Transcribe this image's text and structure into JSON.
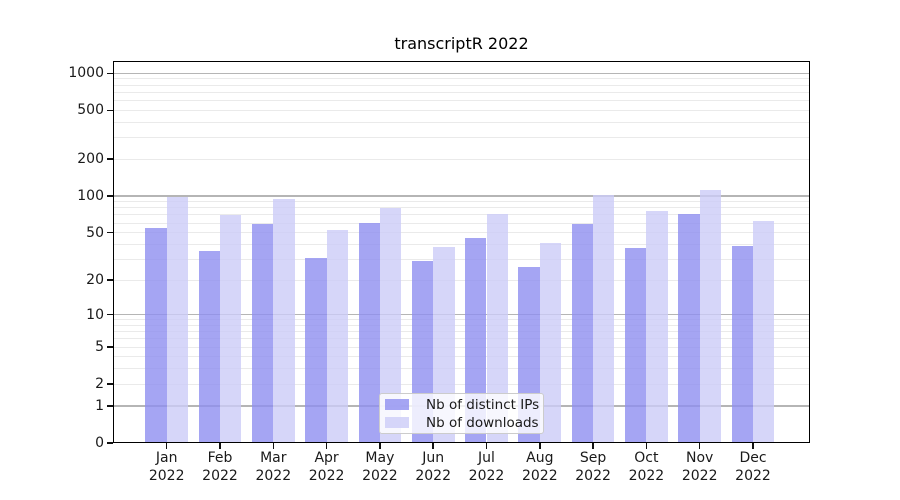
{
  "chart_data": {
    "type": "bar",
    "title": "transcriptR 2022",
    "categories": [
      "Jan 2022",
      "Feb 2022",
      "Mar 2022",
      "Apr 2022",
      "May 2022",
      "Jun 2022",
      "Jul 2022",
      "Aug 2022",
      "Sep 2022",
      "Oct 2022",
      "Nov 2022",
      "Dec 2022"
    ],
    "months": [
      "Jan",
      "Feb",
      "Mar",
      "Apr",
      "May",
      "Jun",
      "Jul",
      "Aug",
      "Sep",
      "Oct",
      "Nov",
      "Dec"
    ],
    "year": "2022",
    "series": [
      {
        "name": "Nb of distinct IPs",
        "color": "#8f8ff0",
        "alpha": 0.8,
        "values": [
          55,
          35,
          59,
          31,
          60,
          29,
          45,
          26,
          59,
          37,
          71,
          39
        ]
      },
      {
        "name": "Nb of downloads",
        "color": "#ccccf8",
        "alpha": 0.8,
        "values": [
          98,
          70,
          95,
          53,
          80,
          38,
          71,
          41,
          101,
          75,
          112,
          62
        ]
      }
    ],
    "xlabel": "",
    "ylabel": "",
    "yscale": "log10(1+x)",
    "ylim": [
      0,
      1258
    ],
    "yticks": [
      0,
      1,
      2,
      5,
      10,
      20,
      50,
      100,
      200,
      500,
      1000
    ],
    "major_gridlines": [
      1,
      10,
      100,
      1000
    ],
    "minor_gridlines": [
      2,
      3,
      4,
      5,
      6,
      7,
      8,
      9,
      20,
      30,
      40,
      50,
      60,
      70,
      80,
      90,
      200,
      300,
      400,
      500,
      600,
      700,
      800,
      900
    ],
    "grid": true,
    "legend_position": "lower center"
  },
  "colors": {
    "background": "#ffffff",
    "axis": "#000000",
    "major_grid": "#b5b5b5",
    "minor_grid": "#eaeaea",
    "tick_label": "#1a1a1a",
    "legend_border": "#cccccc"
  }
}
